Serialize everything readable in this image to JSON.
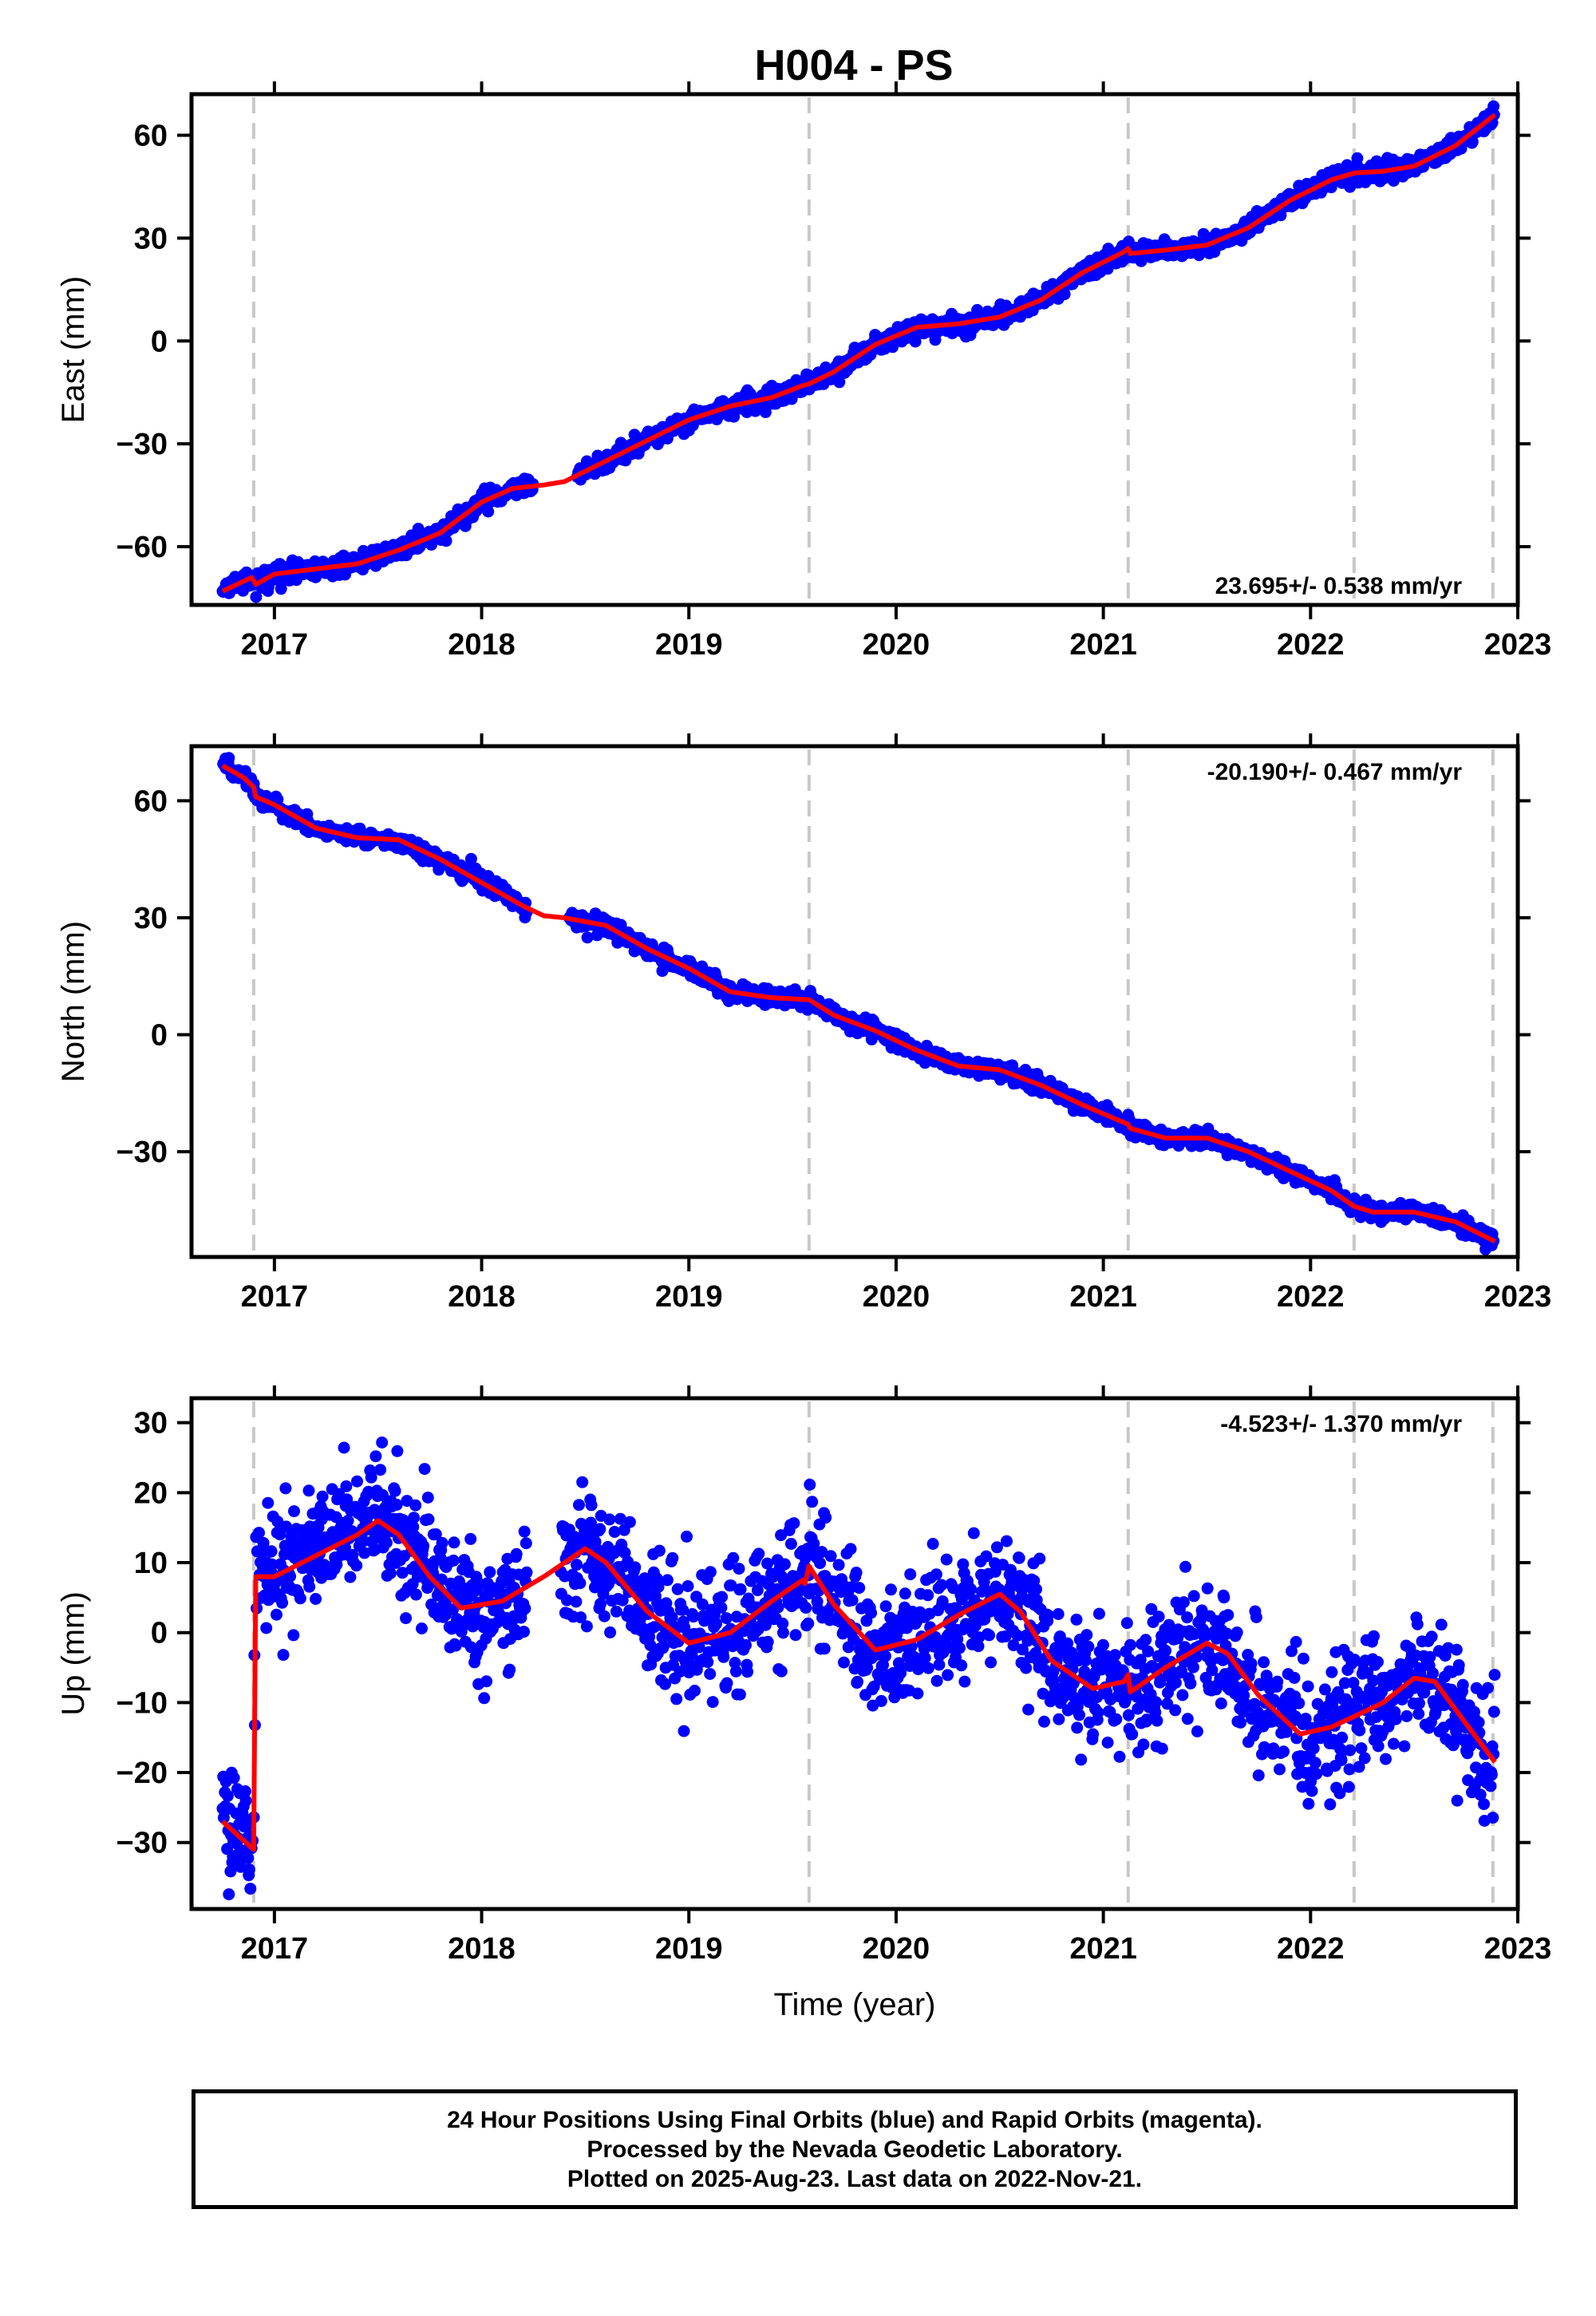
{
  "title": "H004 - PS",
  "chart_data": [
    {
      "type": "scatter",
      "name": "east",
      "ylabel": "East (mm)",
      "xlabel": "",
      "rate": "23.695+/- 0.538 mm/yr",
      "rate_position": "bottom-right",
      "xlim": [
        2016.6,
        2023.0
      ],
      "ylim": [
        -77,
        72
      ],
      "x_ticks": [
        2017,
        2018,
        2019,
        2020,
        2021,
        2022,
        2023
      ],
      "y_ticks": [
        -60,
        -30,
        0,
        30,
        60
      ],
      "y_tick_labels": [
        "−60",
        "−30",
        "0",
        "30",
        "60"
      ],
      "equipment_changes": [
        2016.9,
        2019.58,
        2021.12,
        2022.21,
        2022.88
      ],
      "point_color": "#0000ff",
      "model_color": "#ff0000",
      "data_range": [
        2016.75,
        2022.89
      ],
      "gaps": [
        [
          2018.25,
          2018.45
        ]
      ],
      "noise_mm": 1.3,
      "model": [
        [
          2016.75,
          -73
        ],
        [
          2016.82,
          -71
        ],
        [
          2016.89,
          -69
        ],
        [
          2016.91,
          -71
        ],
        [
          2017.0,
          -68
        ],
        [
          2017.2,
          -66.5
        ],
        [
          2017.4,
          -65
        ],
        [
          2017.6,
          -61
        ],
        [
          2017.8,
          -56
        ],
        [
          2018.0,
          -47
        ],
        [
          2018.15,
          -43
        ],
        [
          2018.3,
          -42
        ],
        [
          2018.4,
          -41
        ],
        [
          2018.6,
          -35
        ],
        [
          2018.8,
          -29
        ],
        [
          2019.0,
          -23
        ],
        [
          2019.2,
          -19
        ],
        [
          2019.4,
          -16.5
        ],
        [
          2019.55,
          -13
        ],
        [
          2019.58,
          -12.5
        ],
        [
          2019.7,
          -9
        ],
        [
          2019.9,
          -1
        ],
        [
          2020.1,
          4
        ],
        [
          2020.3,
          5
        ],
        [
          2020.5,
          7
        ],
        [
          2020.7,
          12
        ],
        [
          2020.9,
          20
        ],
        [
          2021.1,
          26
        ],
        [
          2021.12,
          27
        ],
        [
          2021.13,
          25.5
        ],
        [
          2021.3,
          26.5
        ],
        [
          2021.5,
          28
        ],
        [
          2021.7,
          33
        ],
        [
          2021.9,
          41
        ],
        [
          2022.1,
          47
        ],
        [
          2022.21,
          49
        ],
        [
          2022.35,
          49.5
        ],
        [
          2022.5,
          51
        ],
        [
          2022.7,
          57
        ],
        [
          2022.89,
          66
        ]
      ]
    },
    {
      "type": "scatter",
      "name": "north",
      "ylabel": "North (mm)",
      "xlabel": "",
      "rate": "-20.190+/- 0.467 mm/yr",
      "rate_position": "top-right",
      "xlim": [
        2016.6,
        2023.0
      ],
      "ylim": [
        -57,
        74
      ],
      "x_ticks": [
        2017,
        2018,
        2019,
        2020,
        2021,
        2022,
        2023
      ],
      "y_ticks": [
        -30,
        0,
        30,
        60
      ],
      "y_tick_labels": [
        "−30",
        "0",
        "30",
        "60"
      ],
      "equipment_changes": [
        2016.9,
        2019.58,
        2021.12,
        2022.21,
        2022.88
      ],
      "point_color": "#0000ff",
      "model_color": "#ff0000",
      "data_range": [
        2016.75,
        2022.89
      ],
      "gaps": [
        [
          2018.22,
          2018.42
        ]
      ],
      "noise_mm": 1.0,
      "model": [
        [
          2016.75,
          69
        ],
        [
          2016.85,
          66
        ],
        [
          2016.9,
          63.5
        ],
        [
          2016.91,
          61
        ],
        [
          2017.0,
          59
        ],
        [
          2017.2,
          53
        ],
        [
          2017.4,
          50.5
        ],
        [
          2017.6,
          50
        ],
        [
          2017.8,
          45
        ],
        [
          2018.0,
          39
        ],
        [
          2018.2,
          33
        ],
        [
          2018.3,
          30.5
        ],
        [
          2018.4,
          30
        ],
        [
          2018.6,
          28
        ],
        [
          2018.8,
          22
        ],
        [
          2019.0,
          17
        ],
        [
          2019.2,
          11
        ],
        [
          2019.4,
          9.5
        ],
        [
          2019.58,
          9
        ],
        [
          2019.7,
          5
        ],
        [
          2019.9,
          1
        ],
        [
          2020.1,
          -4
        ],
        [
          2020.3,
          -8
        ],
        [
          2020.5,
          -9
        ],
        [
          2020.7,
          -13
        ],
        [
          2020.9,
          -18
        ],
        [
          2021.12,
          -23
        ],
        [
          2021.13,
          -24
        ],
        [
          2021.3,
          -26.5
        ],
        [
          2021.5,
          -26.5
        ],
        [
          2021.7,
          -30
        ],
        [
          2021.9,
          -35
        ],
        [
          2022.1,
          -40
        ],
        [
          2022.21,
          -44
        ],
        [
          2022.3,
          -45.5
        ],
        [
          2022.5,
          -45.5
        ],
        [
          2022.7,
          -48
        ],
        [
          2022.89,
          -53
        ]
      ]
    },
    {
      "type": "scatter",
      "name": "up",
      "ylabel": "Up (mm)",
      "xlabel": "Time (year)",
      "rate": "-4.523+/- 1.370 mm/yr",
      "rate_position": "top-right",
      "xlim": [
        2016.6,
        2023.0
      ],
      "ylim": [
        -39.5,
        33.5
      ],
      "x_ticks": [
        2017,
        2018,
        2019,
        2020,
        2021,
        2022,
        2023
      ],
      "y_ticks": [
        -30,
        -20,
        -10,
        0,
        10,
        20,
        30
      ],
      "y_tick_labels": [
        "−30",
        "−20",
        "−10",
        "0",
        "10",
        "20",
        "30"
      ],
      "equipment_changes": [
        2016.9,
        2019.58,
        2021.12,
        2022.21,
        2022.88
      ],
      "point_color": "#0000ff",
      "model_color": "#ff0000",
      "data_range": [
        2016.75,
        2022.89
      ],
      "gaps": [
        [
          2018.22,
          2018.38
        ]
      ],
      "noise_mm": 4.3,
      "model": [
        [
          2016.75,
          -27
        ],
        [
          2016.9,
          -31
        ],
        [
          2016.91,
          8
        ],
        [
          2017.0,
          8
        ],
        [
          2017.2,
          11
        ],
        [
          2017.4,
          14
        ],
        [
          2017.5,
          16
        ],
        [
          2017.6,
          14
        ],
        [
          2017.75,
          8
        ],
        [
          2017.9,
          3.5
        ],
        [
          2018.1,
          4.5
        ],
        [
          2018.3,
          8
        ],
        [
          2018.5,
          12
        ],
        [
          2018.6,
          10
        ],
        [
          2018.8,
          3
        ],
        [
          2019.0,
          -1.5
        ],
        [
          2019.2,
          0
        ],
        [
          2019.4,
          4.5
        ],
        [
          2019.55,
          7.5
        ],
        [
          2019.56,
          7
        ],
        [
          2019.58,
          9.5
        ],
        [
          2019.7,
          4
        ],
        [
          2019.9,
          -2.5
        ],
        [
          2020.1,
          -1
        ],
        [
          2020.3,
          2.5
        ],
        [
          2020.5,
          5.5
        ],
        [
          2020.6,
          3
        ],
        [
          2020.75,
          -4
        ],
        [
          2020.95,
          -8
        ],
        [
          2021.1,
          -7
        ],
        [
          2021.12,
          -6
        ],
        [
          2021.13,
          -8.5
        ],
        [
          2021.3,
          -5
        ],
        [
          2021.5,
          -1.5
        ],
        [
          2021.6,
          -3
        ],
        [
          2021.75,
          -9
        ],
        [
          2021.95,
          -14.5
        ],
        [
          2022.1,
          -13.5
        ],
        [
          2022.21,
          -12
        ],
        [
          2022.35,
          -10
        ],
        [
          2022.5,
          -6.5
        ],
        [
          2022.6,
          -7
        ],
        [
          2022.75,
          -13
        ],
        [
          2022.89,
          -18.5
        ]
      ]
    }
  ],
  "footer": {
    "line1": "24 Hour Positions Using Final Orbits (blue) and Rapid Orbits (magenta).",
    "line2": "Processed by the Nevada Geodetic Laboratory.",
    "line3": "Plotted on 2025-Aug-23. Last data on 2022-Nov-21."
  }
}
